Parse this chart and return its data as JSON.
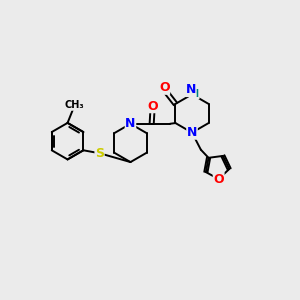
{
  "background_color": "#ebebeb",
  "atom_colors": {
    "N": "#0000ff",
    "O": "#ff0000",
    "S": "#cccc00",
    "H": "#008080",
    "C": "#000000"
  },
  "bond_color": "#000000",
  "bond_width": 1.4,
  "figsize": [
    3.0,
    3.0
  ],
  "dpi": 100,
  "xlim": [
    0,
    10
  ],
  "ylim": [
    0,
    10
  ]
}
